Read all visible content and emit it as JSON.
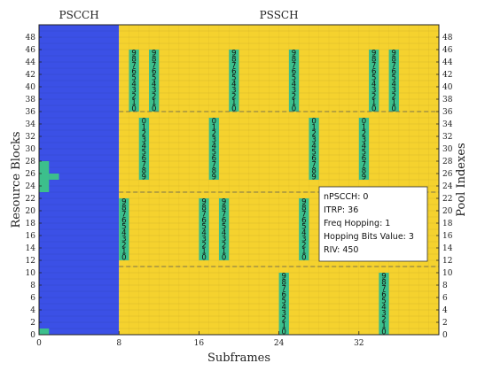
{
  "chart_data": {
    "type": "heatmap",
    "region_labels": [
      "PSCCH",
      "PSSCH"
    ],
    "xlabel": "Subframes",
    "ylabel": "Resource Blocks",
    "y2label": "Pool Indexes",
    "xlim": [
      0,
      40
    ],
    "ylim": [
      0,
      50
    ],
    "x_ticks": [
      0,
      8,
      16,
      24,
      32
    ],
    "y_ticks": [
      0,
      2,
      4,
      6,
      8,
      10,
      12,
      14,
      16,
      18,
      20,
      22,
      24,
      26,
      28,
      30,
      32,
      34,
      36,
      38,
      40,
      42,
      44,
      46,
      48
    ],
    "pscch_region": {
      "x": [
        0,
        8
      ],
      "y": [
        0,
        50
      ]
    },
    "pssch_region": {
      "x": [
        8,
        40
      ],
      "y": [
        0,
        50
      ]
    },
    "dashed_lines_y": [
      11,
      23,
      36
    ],
    "pscch_allocations": [
      {
        "x": [
          0,
          1
        ],
        "y": [
          0,
          1
        ]
      },
      {
        "x": [
          0,
          1
        ],
        "y": [
          23,
          28
        ]
      },
      {
        "x": [
          1,
          2
        ],
        "y": [
          25,
          26
        ]
      }
    ],
    "pssch_allocations": [
      {
        "subframe": 9,
        "rb_range": [
          36,
          46
        ],
        "labels": [
          "9",
          "8",
          "7",
          "6",
          "5",
          "4",
          "3",
          "2",
          "1",
          "0"
        ]
      },
      {
        "subframe": 11,
        "rb_range": [
          36,
          46
        ],
        "labels": [
          "9",
          "8",
          "7",
          "6",
          "5",
          "4",
          "3",
          "2",
          "1",
          "0"
        ]
      },
      {
        "subframe": 19,
        "rb_range": [
          36,
          46
        ],
        "labels": [
          "9",
          "8",
          "7",
          "6",
          "5",
          "4",
          "3",
          "2",
          "1",
          "0"
        ]
      },
      {
        "subframe": 25,
        "rb_range": [
          36,
          46
        ],
        "labels": [
          "9",
          "8",
          "7",
          "6",
          "5",
          "4",
          "3",
          "2",
          "1",
          "0"
        ]
      },
      {
        "subframe": 33,
        "rb_range": [
          36,
          46
        ],
        "labels": [
          "9",
          "8",
          "7",
          "6",
          "5",
          "4",
          "3",
          "2",
          "1",
          "0"
        ]
      },
      {
        "subframe": 35,
        "rb_range": [
          36,
          46
        ],
        "labels": [
          "9",
          "8",
          "7",
          "6",
          "5",
          "4",
          "3",
          "2",
          "1",
          "0"
        ]
      },
      {
        "subframe": 10,
        "rb_range": [
          25,
          35
        ],
        "labels": [
          "0",
          "1",
          "2",
          "3",
          "4",
          "5",
          "6",
          "7",
          "8",
          "9"
        ]
      },
      {
        "subframe": 17,
        "rb_range": [
          25,
          35
        ],
        "labels": [
          "0",
          "1",
          "2",
          "3",
          "4",
          "5",
          "6",
          "7",
          "8",
          "9"
        ]
      },
      {
        "subframe": 27,
        "rb_range": [
          25,
          35
        ],
        "labels": [
          "0",
          "1",
          "2",
          "3",
          "4",
          "5",
          "6",
          "7",
          "8",
          "9"
        ]
      },
      {
        "subframe": 32,
        "rb_range": [
          25,
          35
        ],
        "labels": [
          "0",
          "1",
          "2",
          "3",
          "4",
          "5",
          "6",
          "7",
          "8",
          "9"
        ]
      },
      {
        "subframe": 8,
        "rb_range": [
          12,
          22
        ],
        "labels": [
          "9",
          "8",
          "7",
          "6",
          "5",
          "4",
          "3",
          "2",
          "1",
          "0"
        ]
      },
      {
        "subframe": 16,
        "rb_range": [
          12,
          22
        ],
        "labels": [
          "9",
          "8",
          "7",
          "6",
          "5",
          "4",
          "3",
          "2",
          "1",
          "0"
        ]
      },
      {
        "subframe": 18,
        "rb_range": [
          12,
          22
        ],
        "labels": [
          "9",
          "8",
          "7",
          "6",
          "5",
          "4",
          "3",
          "2",
          "1",
          "0"
        ]
      },
      {
        "subframe": 26,
        "rb_range": [
          12,
          22
        ],
        "labels": [
          "9",
          "8",
          "7",
          "6",
          "5",
          "4",
          "3",
          "2",
          "1",
          "0"
        ]
      },
      {
        "subframe": 24,
        "rb_range": [
          0,
          10
        ],
        "labels": [
          "9",
          "8",
          "7",
          "6",
          "5",
          "4",
          "3",
          "2",
          "1",
          "0"
        ]
      },
      {
        "subframe": 34,
        "rb_range": [
          0,
          10
        ],
        "labels": [
          "9",
          "8",
          "7",
          "6",
          "5",
          "4",
          "3",
          "2",
          "1",
          "0"
        ]
      }
    ],
    "annotation_lines": [
      "nPSCCH: 0",
      "ITRP: 36",
      "Freq Hopping: 1",
      "Hopping Bits Value: 3",
      "RIV: 450"
    ],
    "grid": true,
    "colors": {
      "pscch": "#3b50e6",
      "pssch": "#f5d22e",
      "allocation": "#3cbf8c",
      "grid": "#b09528",
      "pscch_grid": "#3244c4"
    }
  }
}
